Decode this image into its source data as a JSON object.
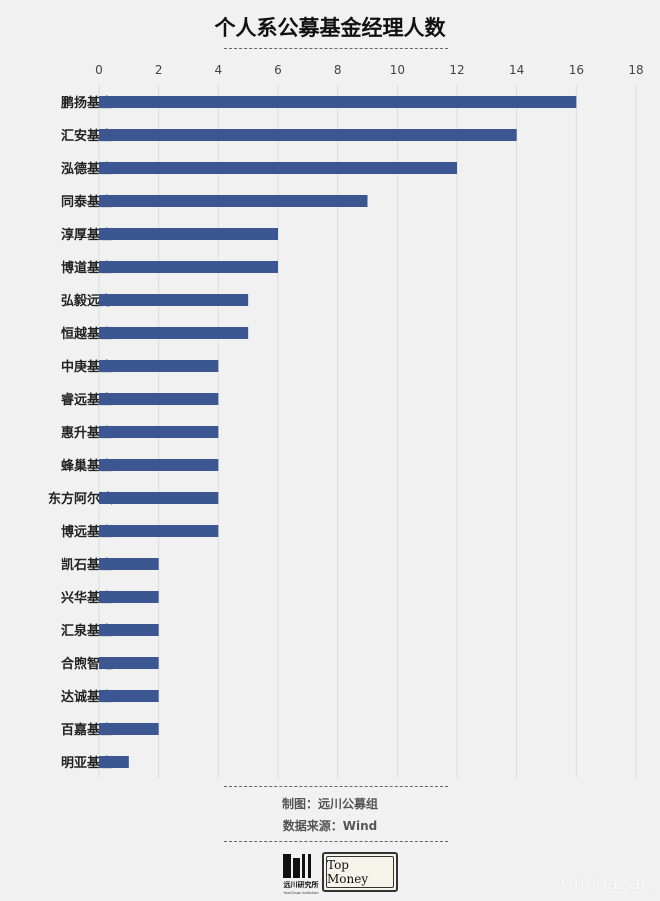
{
  "page": {
    "title": "个人系公募基金经理人数",
    "credit": "制图：远川公募组",
    "source": "数据来源：Wind",
    "logo_left_text": "远川研究所",
    "logo_left_subtext": "YuanChuan Institution",
    "logo_right_text": "Top Money",
    "watermark": "Chi na2au"
  },
  "colors": {
    "bar": "#3b5690",
    "background": "#f1f1f1",
    "grid": "#dcdcdc"
  },
  "chart_data": {
    "type": "bar",
    "orientation": "horizontal",
    "title": "个人系公募基金经理人数",
    "categories": [
      "鹏扬基金",
      "汇安基金",
      "泓德基金",
      "同泰基金",
      "淳厚基金",
      "博道基金",
      "弘毅远方",
      "恒越基金",
      "中庚基金",
      "睿远基金",
      "惠升基金",
      "蜂巢基金",
      "东方阿尔法",
      "博远基金",
      "凯石基金",
      "兴华基金",
      "汇泉基金",
      "合煦智远",
      "达诚基金",
      "百嘉基金",
      "明亚基金"
    ],
    "values": [
      16,
      14,
      12,
      9,
      6,
      6,
      5,
      5,
      4,
      4,
      4,
      4,
      4,
      4,
      2,
      2,
      2,
      2,
      2,
      2,
      1
    ],
    "xlim": [
      0,
      18
    ],
    "xticks": [
      "0",
      "2",
      "4",
      "6",
      "8",
      "10",
      "12",
      "14",
      "16",
      "18"
    ],
    "axis_position": "top",
    "grid": true,
    "xlabel": "",
    "ylabel": ""
  }
}
